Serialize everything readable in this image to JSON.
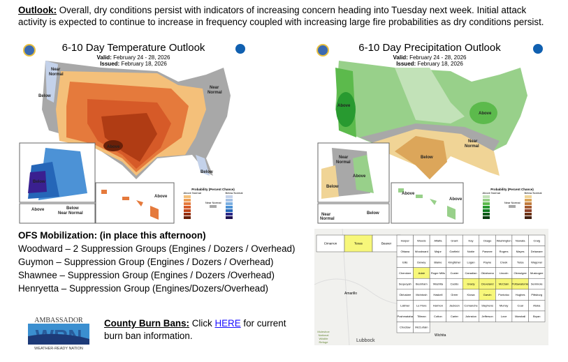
{
  "outlook": {
    "label": "Outlook:",
    "text": " Overall, dry conditions persist with indicators of increasing concern heading into Tuesday next week.  Initial attack activity is expected to continue to increase in frequency coupled with increasing large fire probabilities as dry conditions persist."
  },
  "temp_map": {
    "title": "6-10 Day Temperature Outlook",
    "valid_label": "Valid:",
    "valid": "February 24 - 28, 2026",
    "issued_label": "Issued:",
    "issued": "February 18, 2026",
    "labels": [
      "Near Normal",
      "Near Normal",
      "Below",
      "Above",
      "Below",
      "Below",
      "Above",
      "Above",
      "Below",
      "Near Normal"
    ],
    "legend_title": "Probability (Percent Chance)",
    "legend_above": "Above Normal",
    "legend_below": "Below Normal",
    "legend_near": "Near Normal",
    "colors_above": [
      "#f4c07a",
      "#eda05a",
      "#e57a3c",
      "#d65a28",
      "#c04418",
      "#963010",
      "#6a2008"
    ],
    "colors_below": [
      "#c4d2ea",
      "#a6c2e6",
      "#7aaee0",
      "#4c92d6",
      "#2566b8",
      "#2c2a8a",
      "#1e1050"
    ],
    "near_color": "#a8a8a8"
  },
  "precip_map": {
    "title": "6-10 Day Precipitation Outlook",
    "valid_label": "Valid:",
    "valid": "February 24 - 28, 2026",
    "issued_label": "Issued:",
    "issued": "February 18, 2026",
    "labels": [
      "Above",
      "Above",
      "Near Normal",
      "Below",
      "Near Normal",
      "Above",
      "Below",
      "Above",
      "Above",
      "Below",
      "Near Normal"
    ],
    "legend_title": "Probability (Percent Chance)",
    "legend_above": "Above Normal",
    "legend_below": "Below Normal",
    "legend_near": "Near Normal",
    "colors_above": [
      "#c2e2b8",
      "#98d08a",
      "#5cba4c",
      "#289a30",
      "#107a20",
      "#0c5c18",
      "#083c10"
    ],
    "colors_below": [
      "#f0d496",
      "#dca65a",
      "#c07a3c",
      "#a45a30",
      "#8e4228",
      "#6e3418",
      "#442010"
    ],
    "near_color": "#a8a8a8"
  },
  "ofs": {
    "heading": "OFS Mobilization: (in place this afternoon)",
    "lines": [
      "Woodward – 2 Suppression Groups (Engines / Dozers / Overhead)",
      "Guymon – Suppression Group (Engines / Dozers / Overhead)",
      "Shawnee – Suppression Group (Engines / Dozers /Overhead)",
      "Henryetta – Suppression Group (Engines/Dozers/Overhead)"
    ]
  },
  "burn": {
    "label": "County Burn Bans:",
    "pre": " Click ",
    "link": "HERE",
    "post": " for current burn ban information."
  },
  "logo": {
    "top": "AMBASSADOR",
    "mark": "WRN",
    "bottom": "WEATHER-READY NATION"
  },
  "ok_map": {
    "highlight_color": "#f7f77a",
    "highlighted": [
      "Texas",
      "Grady",
      "McClain",
      "Cleveland",
      "Pottawatomie",
      "Garvin",
      "Adair"
    ],
    "counties": [
      "Cimarron",
      "Texas",
      "Beaver",
      "Harper",
      "Woods",
      "Alfalfa",
      "Grant",
      "Kay",
      "Osage",
      "Washington",
      "Nowata",
      "Craig",
      "Ottawa",
      "Woodward",
      "Major",
      "Garfield",
      "Noble",
      "Pawnee",
      "Rogers",
      "Mayes",
      "Delaware",
      "Ellis",
      "Dewey",
      "Blaine",
      "Kingfisher",
      "Logan",
      "Payne",
      "Creek",
      "Tulsa",
      "Wagoner",
      "Cherokee",
      "Adair",
      "Roger Mills",
      "Custer",
      "Canadian",
      "Oklahoma",
      "Lincoln",
      "Okmulgee",
      "Muskogee",
      "Sequoyah",
      "Beckham",
      "Washita",
      "Caddo",
      "Grady",
      "Cleveland",
      "McClain",
      "Pottawatomie",
      "Seminole",
      "Okfuskee",
      "McIntosh",
      "Haskell",
      "Greer",
      "Kiowa",
      "Garvin",
      "Pontotoc",
      "Hughes",
      "Pittsburg",
      "Latimer",
      "Le Flore",
      "Harmon",
      "Jackson",
      "Comanche",
      "Stephens",
      "Murray",
      "Coal",
      "Atoka",
      "Pushmataha",
      "Tillman",
      "Cotton",
      "Carter",
      "Johnston",
      "Jefferson",
      "Love",
      "Marshall",
      "Bryan",
      "Choctaw",
      "McCurtain"
    ],
    "cities": [
      "Amarillo",
      "Wichita",
      "Lubbock"
    ],
    "refuge": "Muleshoe National Wildlife Refuge"
  }
}
